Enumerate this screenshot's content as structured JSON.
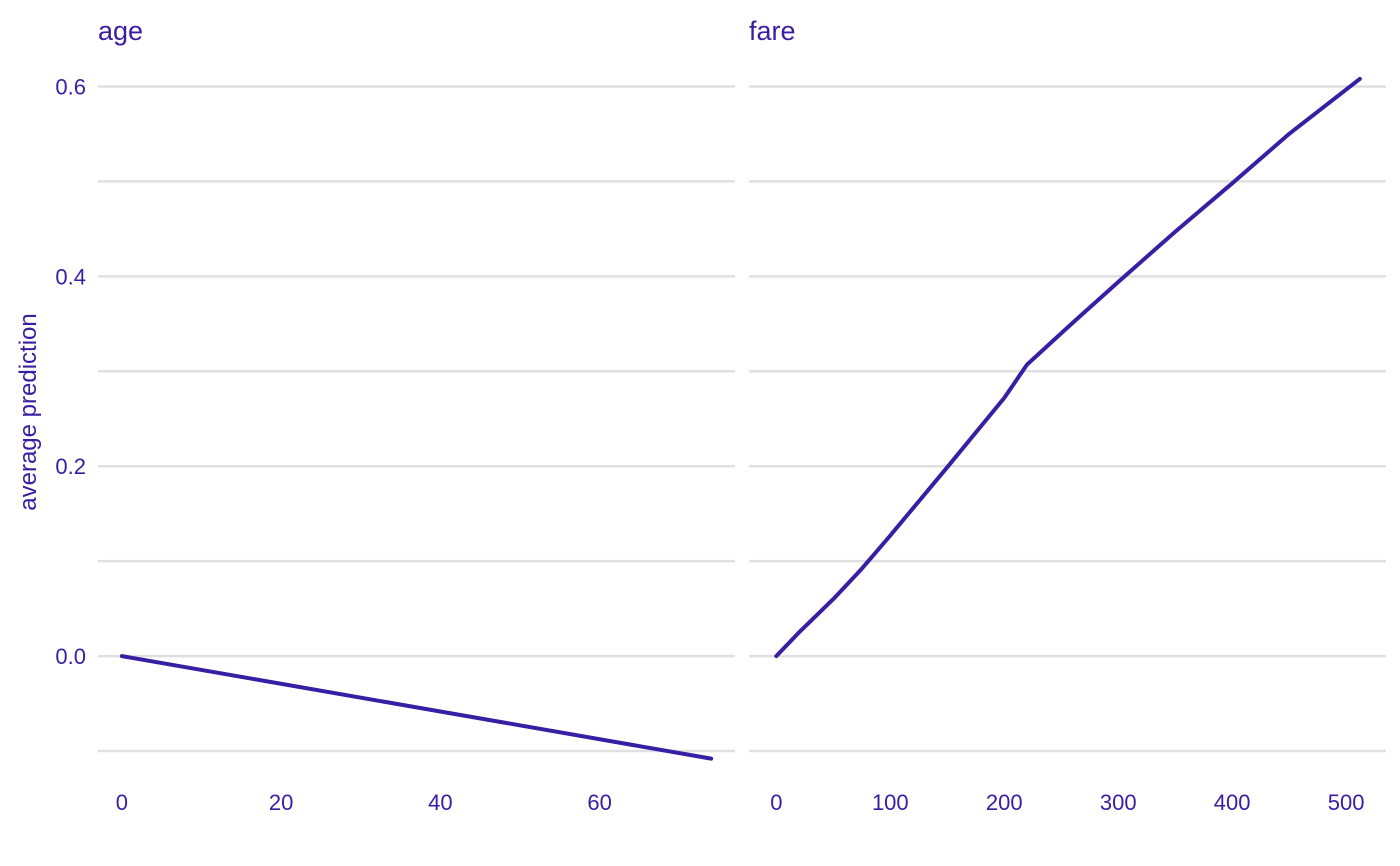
{
  "chart_data": {
    "type": "line",
    "ylabel": "average prediction",
    "ylim": [
      -0.12,
      0.63
    ],
    "y_ticks": [
      0.0,
      0.2,
      0.4,
      0.6
    ],
    "y_tick_labels": [
      "0.0",
      "0.2",
      "0.4",
      "0.6"
    ],
    "y_minor_grid": [
      -0.1,
      0.1,
      0.3,
      0.5
    ],
    "grid": "horizontal",
    "line_color": "#371ea3",
    "panels": [
      {
        "title": "age",
        "xlim": [
          -3,
          77
        ],
        "x_ticks": [
          0,
          20,
          40,
          60
        ],
        "x_tick_labels": [
          "0",
          "20",
          "40",
          "60"
        ],
        "series": [
          {
            "x": [
              0,
              74
            ],
            "y": [
              0.0,
              -0.108
            ]
          }
        ]
      },
      {
        "title": "fare",
        "xlim": [
          -24,
          535
        ],
        "x_ticks": [
          0,
          100,
          200,
          300,
          400,
          500
        ],
        "x_tick_labels": [
          "0",
          "100",
          "200",
          "300",
          "400",
          "500"
        ],
        "series": [
          {
            "x": [
              0,
              20,
              50,
              75,
              100,
              150,
              200,
              220,
              260,
              300,
              350,
              400,
              450,
              512
            ],
            "y": [
              0.0,
              0.025,
              0.06,
              0.092,
              0.127,
              0.199,
              0.272,
              0.307,
              0.351,
              0.394,
              0.447,
              0.498,
              0.55,
              0.608
            ]
          }
        ]
      }
    ]
  }
}
